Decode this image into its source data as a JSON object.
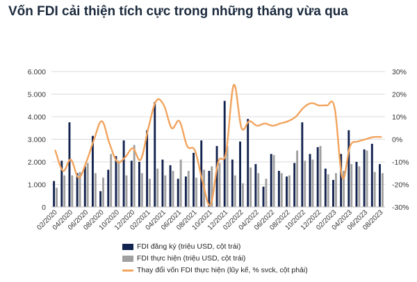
{
  "title": "Vốn FDI cải thiện tích cực trong những tháng vừa qua",
  "colors": {
    "registered": "#13234f",
    "realized": "#a0a0a0",
    "growth": "#f2a35c",
    "grid": "#d9d9d9",
    "axis_text": "#333333"
  },
  "chart_data": {
    "type": "bar",
    "months": [
      "02/2020",
      "03/2020",
      "04/2020",
      "05/2020",
      "06/2020",
      "07/2020",
      "08/2020",
      "09/2020",
      "10/2020",
      "11/2020",
      "12/2020",
      "01/2021",
      "02/2021",
      "03/2021",
      "04/2021",
      "05/2021",
      "06/2021",
      "07/2021",
      "08/2021",
      "09/2021",
      "10/2021",
      "11/2021",
      "12/2021",
      "01/2022",
      "02/2022",
      "03/2022",
      "04/2022",
      "05/2022",
      "06/2022",
      "07/2022",
      "08/2022",
      "09/2022",
      "10/2022",
      "11/2022",
      "12/2022",
      "01/2023",
      "02/2023",
      "03/2023",
      "04/2023",
      "05/2023",
      "06/2023",
      "07/2023",
      "08/2023"
    ],
    "x_tick_labels": [
      "02/2020",
      "04/2020",
      "06/2020",
      "08/2020",
      "10/2020",
      "12/2020",
      "02/2021",
      "04/2021",
      "06/2021",
      "08/2021",
      "10/2021",
      "12/2021",
      "02/2022",
      "04/2022",
      "06/2022",
      "08/2022",
      "10/2022",
      "12/2022",
      "02/2023",
      "04/2023",
      "06/2023",
      "08/2023"
    ],
    "y_left_ticks": [
      "0",
      "1.000",
      "2.000",
      "3.000",
      "4.000",
      "5.000",
      "6.000"
    ],
    "y_left_range": [
      0,
      6000
    ],
    "y_right_ticks": [
      "-30%",
      "-20%",
      "-10%",
      "0%",
      "10%",
      "20%",
      "30%"
    ],
    "y_right_range": [
      -30,
      30
    ],
    "series": [
      {
        "name": "FDI đăng ký (triệu USD, cột trái)",
        "axis": "left",
        "kind": "bar",
        "values": [
          1150,
          2050,
          3750,
          1500,
          1800,
          3150,
          700,
          1650,
          2250,
          2950,
          2050,
          2000,
          3400,
          4650,
          2100,
          1850,
          1250,
          1350,
          2400,
          2950,
          1600,
          2700,
          4700,
          2100,
          2900,
          3900,
          1900,
          900,
          2350,
          1600,
          1350,
          1950,
          3750,
          2350,
          2650,
          1700,
          1200,
          2350,
          3400,
          2000,
          2550,
          2800,
          1900
        ],
        "value_labels": []
      },
      {
        "name": "FDI thực hiện (triệu USD, cột trái)",
        "axis": "left",
        "kind": "bar",
        "values": [
          850,
          1400,
          1400,
          1550,
          1950,
          1500,
          1300,
          2350,
          2050,
          1400,
          2750,
          1500,
          1250,
          1700,
          1400,
          1600,
          2100,
          1600,
          1300,
          1650,
          1800,
          1950,
          2700,
          1400,
          1050,
          1750,
          1500,
          1250,
          2300,
          1500,
          1400,
          2500,
          2050,
          2100,
          2700,
          1450,
          1500,
          1600,
          1900,
          1800,
          2500,
          1550,
          1500
        ],
        "value_labels": []
      },
      {
        "name": "Thay đổi vốn FDI thực hiện (lũy kế, % svck, cột phải)",
        "axis": "right",
        "kind": "line",
        "values": [
          -5,
          -14,
          -9,
          -17,
          -10,
          0,
          8,
          -2,
          -10,
          -8,
          -4,
          -9,
          5,
          17,
          15,
          5,
          8,
          -3,
          -5,
          -19,
          -29,
          -10,
          -6,
          24,
          5,
          8,
          6,
          7,
          6,
          7,
          8,
          10,
          14,
          16,
          15,
          15,
          14,
          -17,
          -3,
          -1,
          0,
          1,
          1
        ]
      }
    ],
    "xlabel": "",
    "ylabel": "",
    "legend_position": "bottom",
    "grid": true
  }
}
